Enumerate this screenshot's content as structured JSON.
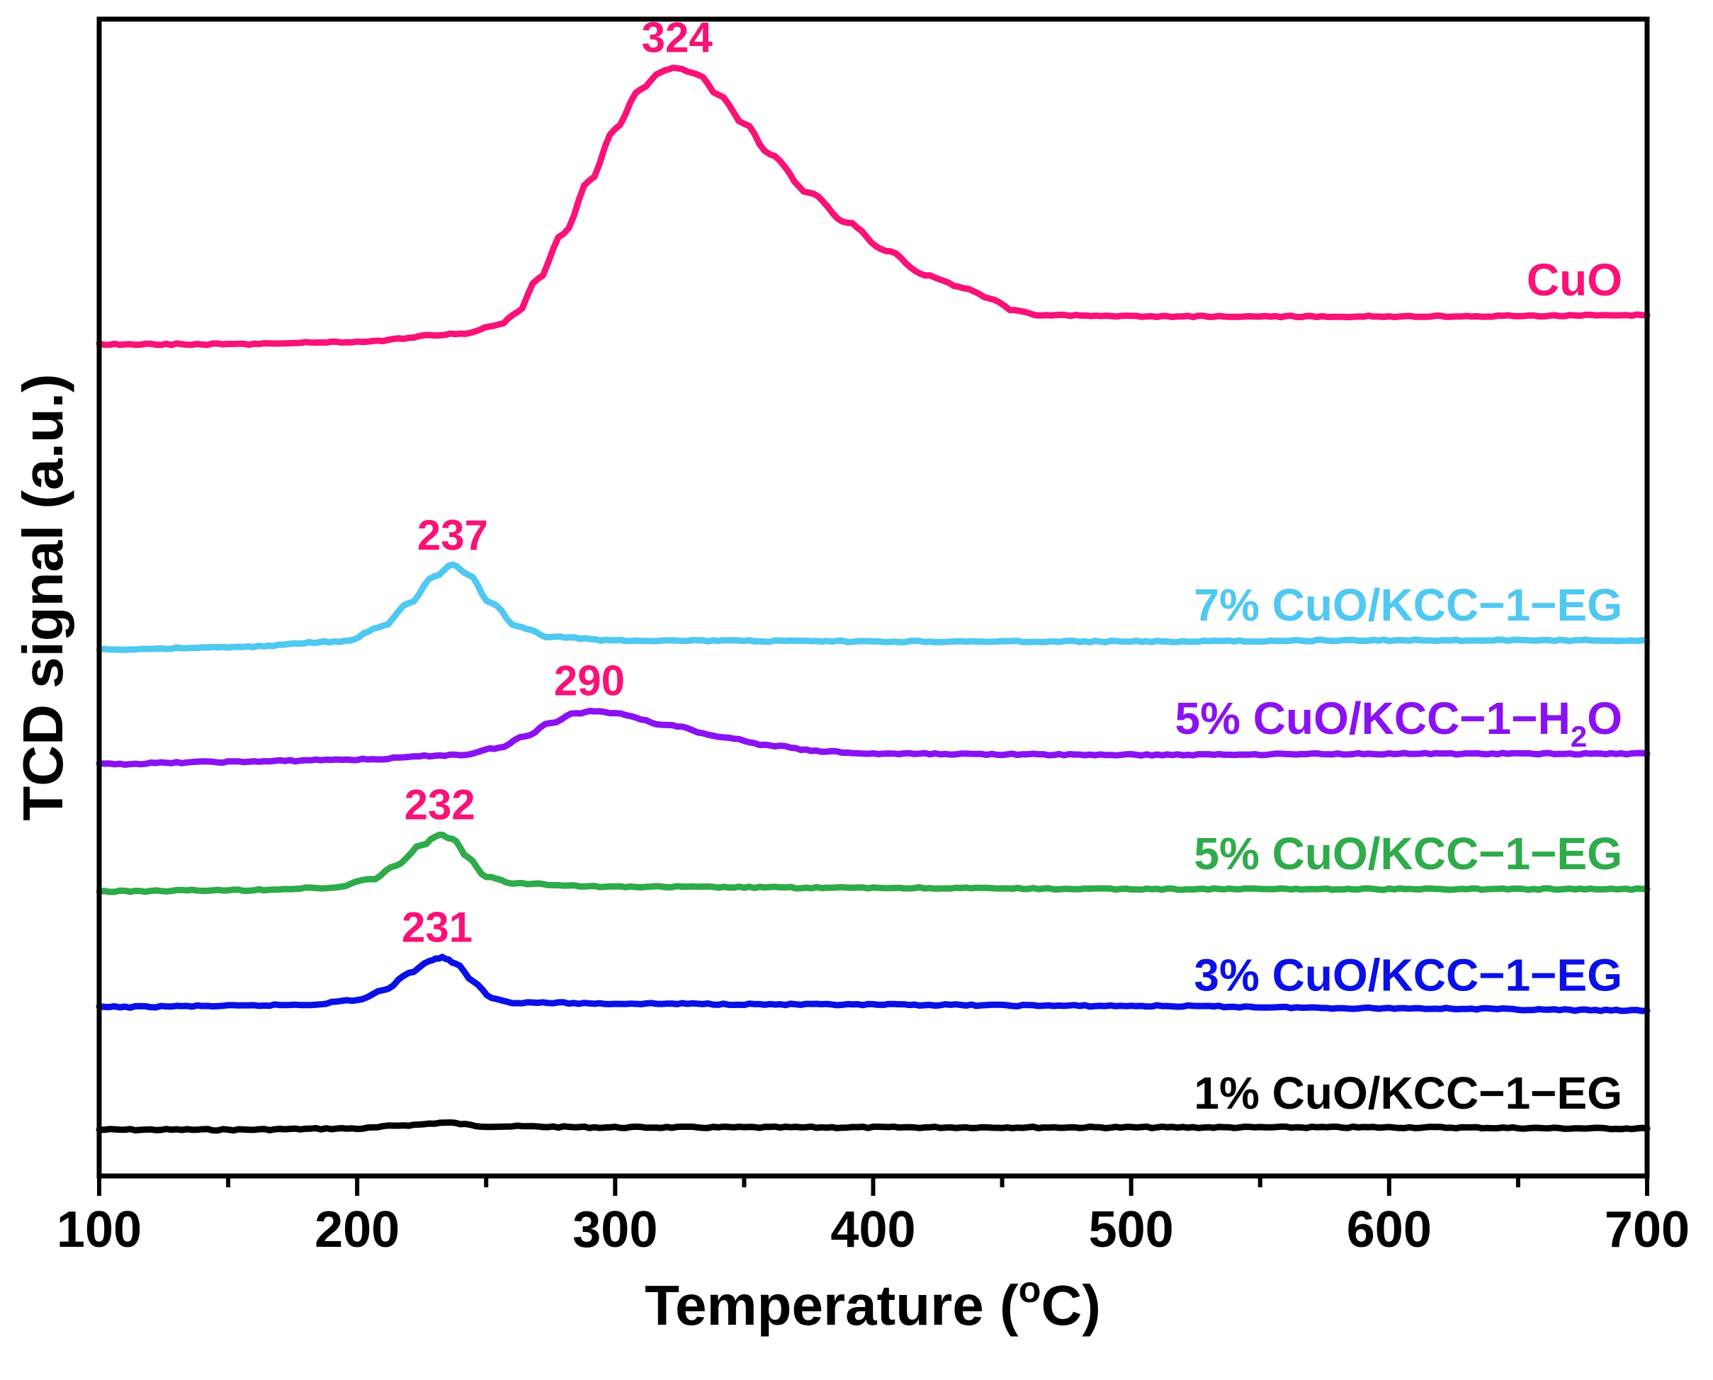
{
  "chart_data": {
    "type": "line",
    "title": "",
    "xlabel": "Temperature (",
    "xlabel_unit_sup": "o",
    "xlabel_unit_end": "C)",
    "ylabel": "TCD signal (a.u.)",
    "xlim": [
      100,
      700
    ],
    "ylim": [
      0,
      100
    ],
    "x_ticks": [
      100,
      200,
      300,
      400,
      500,
      600,
      700
    ],
    "x_tick_labels": [
      "100",
      "200",
      "300",
      "400",
      "500",
      "600",
      "700"
    ],
    "y_ticks_visible": false,
    "grid": false,
    "legend": "inline labels at right",
    "series": [
      {
        "name": "1% CuO/KCC−1−EG",
        "color": "#000000",
        "points": [
          [
            100,
            4.0
          ],
          [
            150,
            4.0
          ],
          [
            200,
            4.1
          ],
          [
            220,
            4.4
          ],
          [
            234,
            4.6
          ],
          [
            250,
            4.3
          ],
          [
            300,
            4.2
          ],
          [
            400,
            4.2
          ],
          [
            500,
            4.2
          ],
          [
            600,
            4.2
          ],
          [
            700,
            4.1
          ]
        ]
      },
      {
        "name": "3% CuO/KCC−1−EG",
        "color": "#0a10e6",
        "peak": 231,
        "peak_label": "231",
        "points": [
          [
            100,
            14.6
          ],
          [
            150,
            14.7
          ],
          [
            180,
            14.8
          ],
          [
            200,
            15.2
          ],
          [
            210,
            16.0
          ],
          [
            220,
            17.5
          ],
          [
            228,
            18.6
          ],
          [
            233,
            18.9
          ],
          [
            238,
            18.4
          ],
          [
            245,
            16.8
          ],
          [
            252,
            15.4
          ],
          [
            260,
            15.0
          ],
          [
            300,
            14.9
          ],
          [
            400,
            14.8
          ],
          [
            500,
            14.7
          ],
          [
            600,
            14.5
          ],
          [
            700,
            14.3
          ]
        ]
      },
      {
        "name": "5% CuO/KCC−1−EG",
        "color": "#2eab4a",
        "peak": 232,
        "peak_label": "232",
        "points": [
          [
            100,
            24.6
          ],
          [
            150,
            24.7
          ],
          [
            190,
            24.9
          ],
          [
            205,
            25.6
          ],
          [
            215,
            26.8
          ],
          [
            225,
            28.6
          ],
          [
            232,
            29.5
          ],
          [
            237,
            29.1
          ],
          [
            243,
            27.5
          ],
          [
            250,
            25.9
          ],
          [
            260,
            25.3
          ],
          [
            300,
            25.0
          ],
          [
            400,
            24.9
          ],
          [
            500,
            24.8
          ],
          [
            600,
            24.8
          ],
          [
            700,
            24.8
          ]
        ]
      },
      {
        "name": "5% CuO/KCC−1−H",
        "name_sub": "2",
        "name_end": "O",
        "color": "#8a12f2",
        "peak": 290,
        "peak_label": "290",
        "points": [
          [
            100,
            35.6
          ],
          [
            150,
            35.8
          ],
          [
            200,
            36.0
          ],
          [
            240,
            36.4
          ],
          [
            255,
            37.0
          ],
          [
            265,
            38.0
          ],
          [
            275,
            39.2
          ],
          [
            285,
            40.0
          ],
          [
            292,
            40.2
          ],
          [
            300,
            40.0
          ],
          [
            320,
            39.0
          ],
          [
            340,
            38.0
          ],
          [
            360,
            37.2
          ],
          [
            380,
            36.7
          ],
          [
            400,
            36.5
          ],
          [
            500,
            36.4
          ],
          [
            600,
            36.5
          ],
          [
            700,
            36.5
          ]
        ]
      },
      {
        "name": "7% CuO/KCC−1−EG",
        "color": "#4fc8f2",
        "peak": 237,
        "peak_label": "237",
        "points": [
          [
            100,
            45.5
          ],
          [
            150,
            45.7
          ],
          [
            195,
            46.2
          ],
          [
            210,
            47.5
          ],
          [
            220,
            49.5
          ],
          [
            230,
            51.8
          ],
          [
            237,
            52.8
          ],
          [
            243,
            52.0
          ],
          [
            252,
            49.5
          ],
          [
            262,
            47.5
          ],
          [
            275,
            46.6
          ],
          [
            300,
            46.3
          ],
          [
            400,
            46.2
          ],
          [
            500,
            46.2
          ],
          [
            600,
            46.3
          ],
          [
            700,
            46.3
          ]
        ]
      },
      {
        "name": "CuO",
        "color": "#fa1278",
        "peak": 324,
        "peak_label": "324",
        "points": [
          [
            100,
            71.9
          ],
          [
            150,
            71.9
          ],
          [
            200,
            72.1
          ],
          [
            240,
            72.8
          ],
          [
            255,
            73.6
          ],
          [
            262,
            74.6
          ],
          [
            270,
            77.5
          ],
          [
            280,
            81.5
          ],
          [
            290,
            86.0
          ],
          [
            300,
            90.5
          ],
          [
            310,
            94.0
          ],
          [
            318,
            95.5
          ],
          [
            324,
            95.8
          ],
          [
            332,
            95.2
          ],
          [
            340,
            93.5
          ],
          [
            350,
            91.0
          ],
          [
            360,
            88.3
          ],
          [
            375,
            85.0
          ],
          [
            390,
            82.4
          ],
          [
            405,
            80.0
          ],
          [
            420,
            77.9
          ],
          [
            435,
            76.8
          ],
          [
            445,
            75.9
          ],
          [
            455,
            74.8
          ],
          [
            465,
            74.4
          ],
          [
            500,
            74.3
          ],
          [
            600,
            74.3
          ],
          [
            700,
            74.4
          ]
        ]
      }
    ]
  }
}
